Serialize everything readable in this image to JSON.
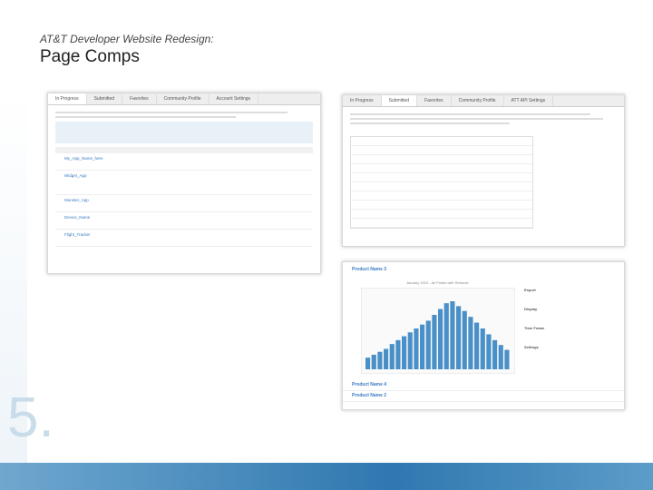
{
  "header": {
    "kicker": "AT&T Developer Website Redesign:",
    "title": "Page Comps",
    "number": "5."
  },
  "left_comp": {
    "tabs": [
      "In Progress",
      "Submitted",
      "Favorites",
      "Community Profile",
      "Account Settings"
    ],
    "rows": [
      "My_App_Name_here",
      "Widget_App",
      "Monster_App",
      "Device_Name",
      "Flight_Tracker"
    ]
  },
  "right_comp": {
    "tabs": [
      "In Progress",
      "Submitted",
      "Favorites",
      "Community Profile",
      "ATT API Settings"
    ],
    "section": "Product Name 3",
    "chart_title": "January 2010 - All Points with Refunds",
    "panel": [
      "Export",
      "Display",
      "Time Frame",
      "Settings"
    ],
    "bars": [
      120,
      150,
      180,
      210,
      260,
      300,
      340,
      380,
      420,
      460,
      500,
      560,
      620,
      680,
      700,
      650,
      600,
      540,
      480,
      420,
      360,
      300,
      250,
      200
    ],
    "rows": [
      "Product Name 4",
      "Product Name 2"
    ]
  }
}
